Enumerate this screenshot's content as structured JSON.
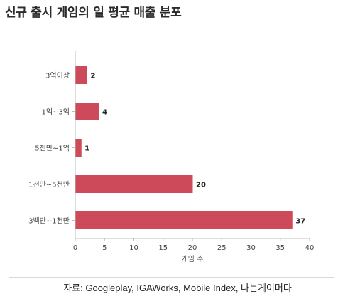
{
  "header": {
    "title": "신규 출시 게임의 일 평균 매출 분포"
  },
  "footer": {
    "source": "자료: Googleplay, IGAWorks, Mobile Index, 나는게이머다"
  },
  "chart_data": {
    "type": "bar",
    "orientation": "horizontal",
    "title": "신규 출시 게임의 일 평균 매출 분포",
    "categories": [
      "3억이상",
      "1억~3억",
      "5천만~1억",
      "1천만~5천만",
      "3백만~1천만"
    ],
    "values": [
      2,
      4,
      1,
      20,
      37
    ],
    "xlabel": "게임 수",
    "ylabel": "",
    "xlim": [
      0,
      40
    ],
    "xticks": [
      0,
      5,
      10,
      15,
      20,
      25,
      30,
      35,
      40
    ],
    "grid": false,
    "legend": "none",
    "bar_color": "#cd4a5a",
    "axis_color": "#bdbdbd"
  }
}
